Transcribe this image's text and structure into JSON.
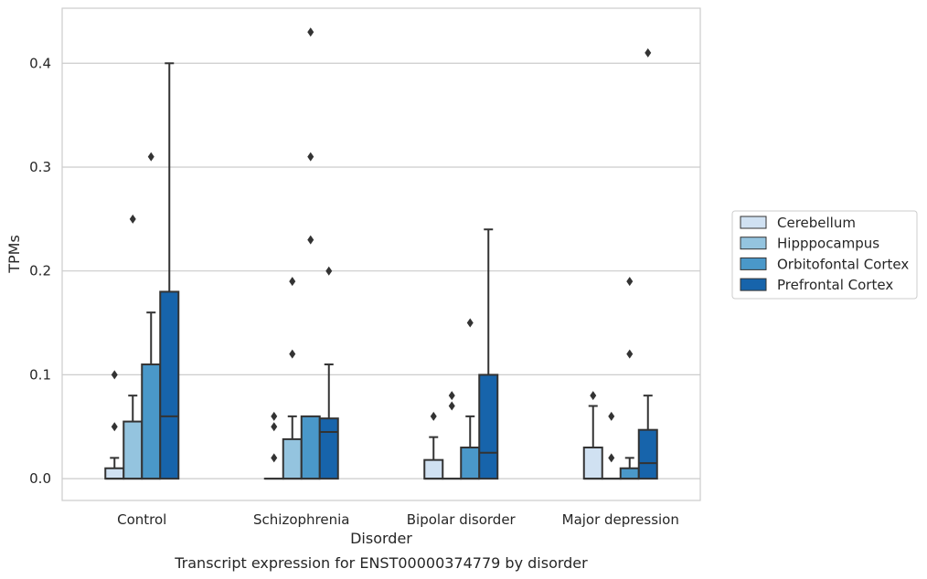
{
  "chart_data": {
    "type": "box",
    "title": "",
    "caption": "Transcript expression for ENST00000374779 by disorder",
    "xlabel": "Disorder",
    "ylabel": "TPMs",
    "ylim": [
      -0.021,
      0.453
    ],
    "yticks": [
      0.0,
      0.1,
      0.2,
      0.3,
      0.4
    ],
    "ytick_labels": [
      "0.0",
      "0.1",
      "0.2",
      "0.3",
      "0.4"
    ],
    "grid": "horizontal",
    "legend_position": "right",
    "categories": [
      "Control",
      "Schizophrenia",
      "Bipolar disorder",
      "Major depression"
    ],
    "series": [
      {
        "name": "Cerebellum",
        "color": "#d0e1f2",
        "boxes": [
          {
            "whisker_low": 0.0,
            "q1": 0.0,
            "median": 0.0,
            "q3": 0.01,
            "whisker_high": 0.02,
            "outliers": [
              0.05,
              0.1
            ]
          },
          {
            "whisker_low": 0.0,
            "q1": 0.0,
            "median": 0.0,
            "q3": 0.0,
            "whisker_high": 0.0,
            "outliers": [
              0.02,
              0.05,
              0.06
            ]
          },
          {
            "whisker_low": 0.0,
            "q1": 0.0,
            "median": 0.0,
            "q3": 0.018,
            "whisker_high": 0.04,
            "outliers": [
              0.06
            ]
          },
          {
            "whisker_low": 0.0,
            "q1": 0.0,
            "median": 0.0,
            "q3": 0.03,
            "whisker_high": 0.07,
            "outliers": [
              0.08
            ]
          }
        ]
      },
      {
        "name": "Hipppocampus",
        "color": "#94c4df",
        "boxes": [
          {
            "whisker_low": 0.0,
            "q1": 0.0,
            "median": 0.0,
            "q3": 0.055,
            "whisker_high": 0.08,
            "outliers": [
              0.25
            ]
          },
          {
            "whisker_low": 0.0,
            "q1": 0.0,
            "median": 0.0,
            "q3": 0.038,
            "whisker_high": 0.06,
            "outliers": [
              0.12,
              0.19
            ]
          },
          {
            "whisker_low": 0.0,
            "q1": 0.0,
            "median": 0.0,
            "q3": 0.0,
            "whisker_high": 0.0,
            "outliers": [
              0.07,
              0.08
            ]
          },
          {
            "whisker_low": 0.0,
            "q1": 0.0,
            "median": 0.0,
            "q3": 0.0,
            "whisker_high": 0.0,
            "outliers": [
              0.02,
              0.06
            ]
          }
        ]
      },
      {
        "name": "Orbitofontal Cortex",
        "color": "#4a98c9",
        "boxes": [
          {
            "whisker_low": 0.0,
            "q1": 0.0,
            "median": 0.0,
            "q3": 0.11,
            "whisker_high": 0.16,
            "outliers": [
              0.31
            ]
          },
          {
            "whisker_low": 0.0,
            "q1": 0.0,
            "median": 0.0,
            "q3": 0.06,
            "whisker_high": 0.06,
            "outliers": [
              0.23,
              0.31,
              0.43
            ]
          },
          {
            "whisker_low": 0.0,
            "q1": 0.0,
            "median": 0.0,
            "q3": 0.03,
            "whisker_high": 0.06,
            "outliers": [
              0.15
            ]
          },
          {
            "whisker_low": 0.0,
            "q1": 0.0,
            "median": 0.0,
            "q3": 0.01,
            "whisker_high": 0.02,
            "outliers": [
              0.12,
              0.19
            ]
          }
        ]
      },
      {
        "name": "Prefrontal Cortex",
        "color": "#1764ab",
        "boxes": [
          {
            "whisker_low": 0.0,
            "q1": 0.0,
            "median": 0.06,
            "q3": 0.18,
            "whisker_high": 0.4,
            "outliers": []
          },
          {
            "whisker_low": 0.0,
            "q1": 0.0,
            "median": 0.045,
            "q3": 0.058,
            "whisker_high": 0.11,
            "outliers": [
              0.2
            ]
          },
          {
            "whisker_low": 0.0,
            "q1": 0.0,
            "median": 0.025,
            "q3": 0.1,
            "whisker_high": 0.24,
            "outliers": []
          },
          {
            "whisker_low": 0.0,
            "q1": 0.0,
            "median": 0.015,
            "q3": 0.047,
            "whisker_high": 0.08,
            "outliers": [
              0.41
            ]
          }
        ]
      }
    ]
  }
}
